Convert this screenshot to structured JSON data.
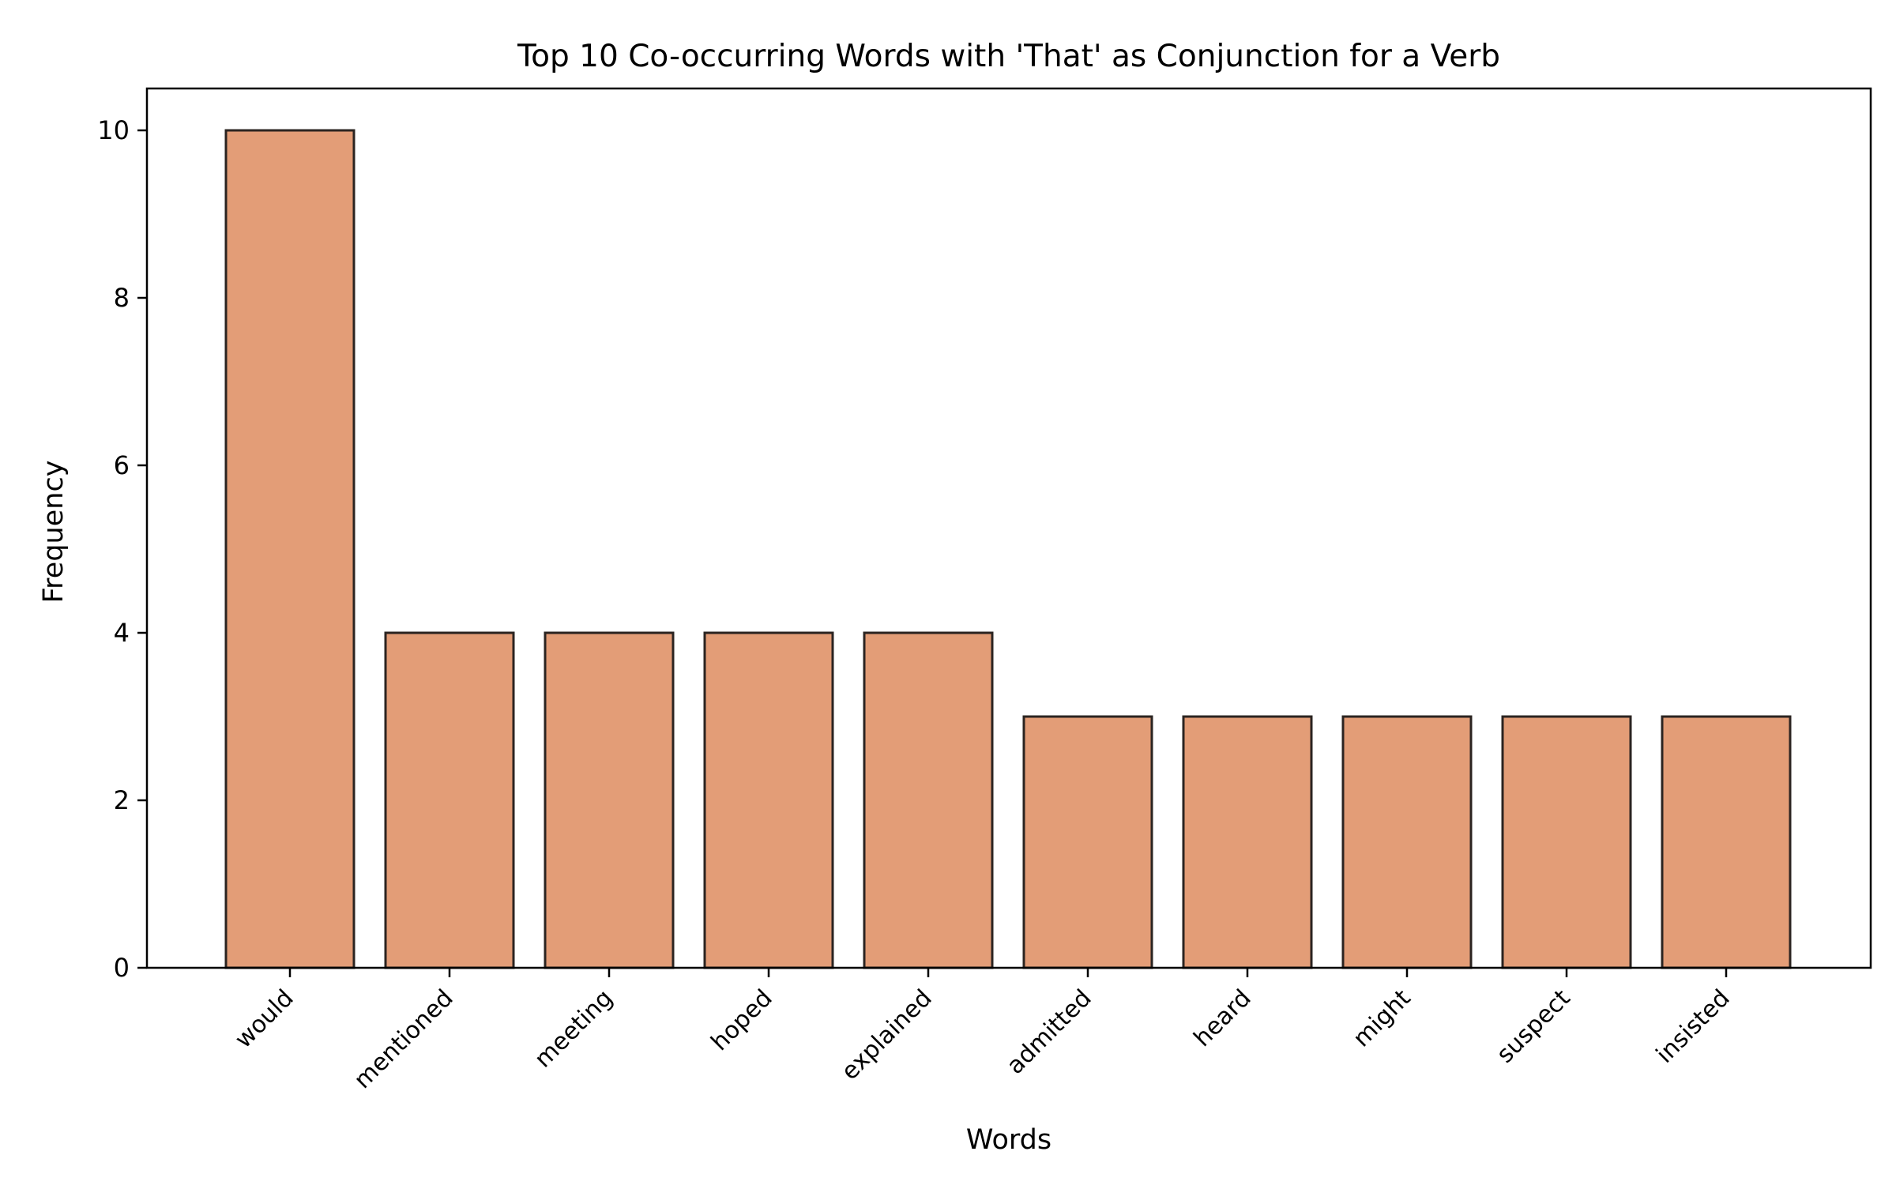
{
  "chart_data": {
    "type": "bar",
    "title": "Top 10 Co-occurring Words with 'That' as Conjunction for a Verb",
    "xlabel": "Words",
    "ylabel": "Frequency",
    "categories": [
      "would",
      "mentioned",
      "meeting",
      "hoped",
      "explained",
      "admitted",
      "heard",
      "might",
      "suspect",
      "insisted"
    ],
    "values": [
      10,
      4,
      4,
      4,
      4,
      3,
      3,
      3,
      3,
      3
    ],
    "ylim": [
      0,
      10.5
    ],
    "yticks": [
      0,
      2,
      4,
      6,
      8,
      10
    ],
    "grid": false,
    "legend": "none",
    "colors": {
      "bar_fill": "#E39D77",
      "bar_edge": "#2B2421",
      "axis": "#000000"
    }
  }
}
